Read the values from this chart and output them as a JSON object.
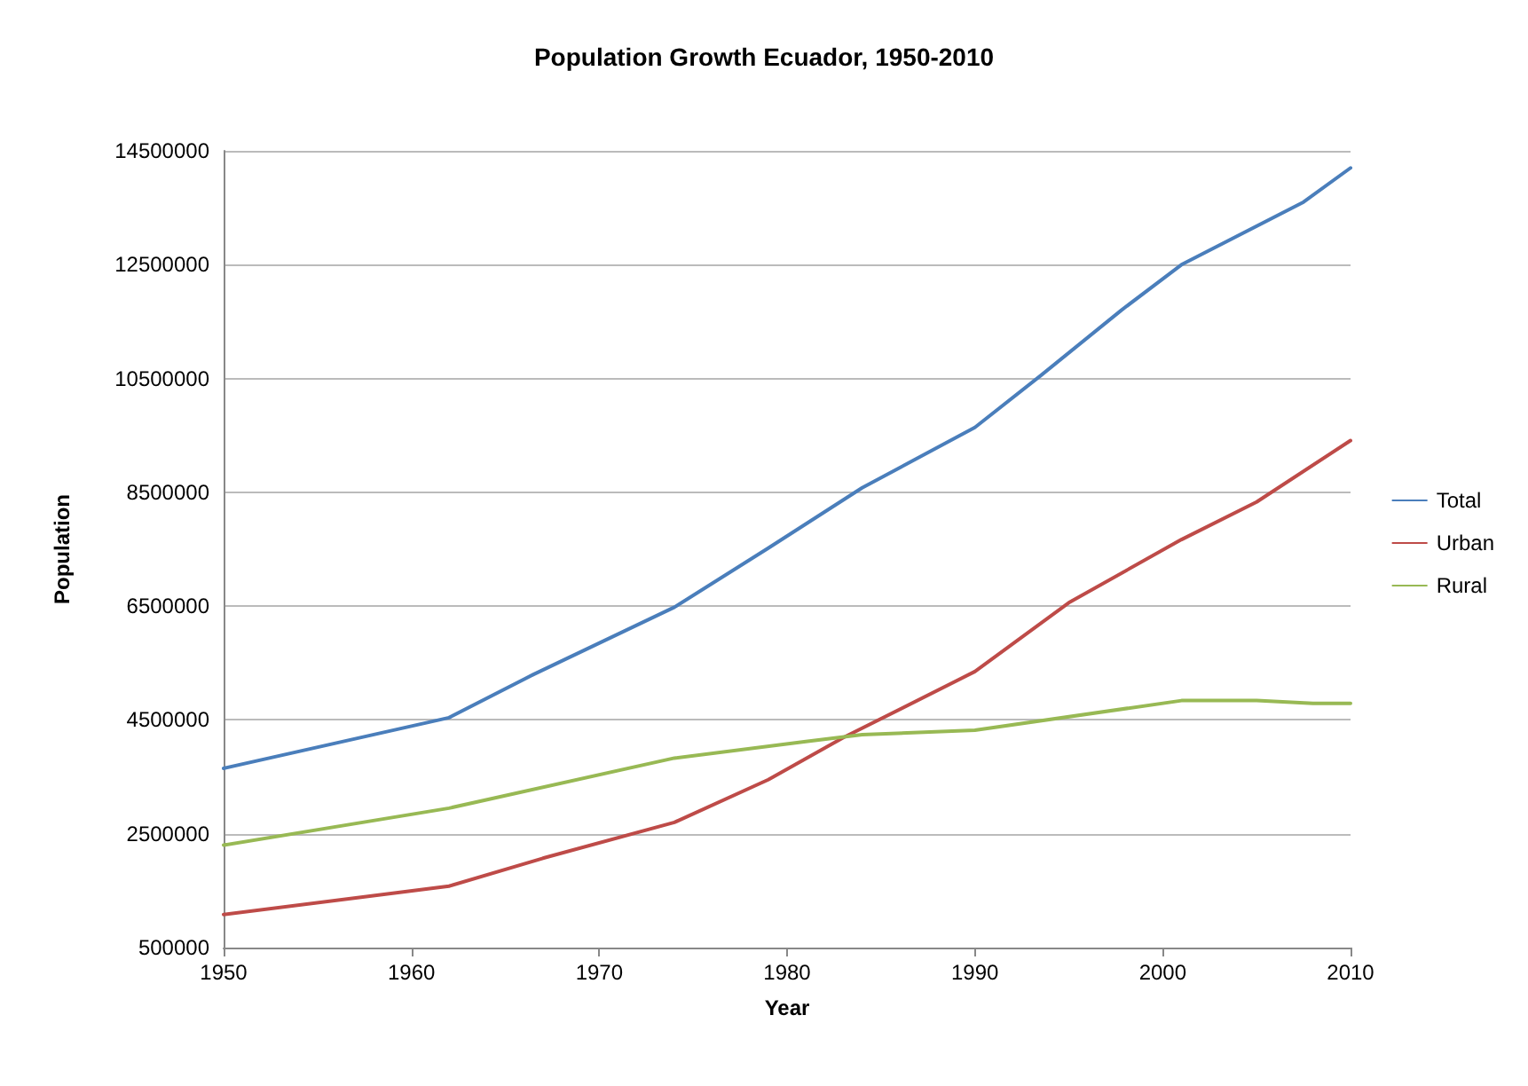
{
  "chart_data": {
    "type": "line",
    "title": "Population Growth Ecuador, 1950-2010",
    "xlabel": "Year",
    "ylabel": "Population",
    "xlim": [
      1950,
      2010
    ],
    "xticks": [
      1950,
      1960,
      1970,
      1980,
      1990,
      2000,
      2010
    ],
    "ylim": [
      500000,
      14500000
    ],
    "yticks": [
      500000,
      2500000,
      4500000,
      6500000,
      8500000,
      10500000,
      12500000,
      14500000
    ],
    "grid": "y",
    "legend": "right",
    "marker": "none",
    "line_style": "solid",
    "series": [
      {
        "name": "Total",
        "color": "#4a7ebb",
        "x": [
          1950,
          1962,
          1966.5,
          1974,
          1979,
          1984,
          1990,
          1993.5,
          1997.8,
          2001,
          2007.5,
          2010
        ],
        "values": [
          3650000,
          4540000,
          5300000,
          6480000,
          7520000,
          8580000,
          9640000,
          10550000,
          11700000,
          12500000,
          13600000,
          14200000
        ]
      },
      {
        "name": "Urban",
        "color": "#be4b48",
        "x": [
          1950,
          1962,
          1967,
          1974,
          1979,
          1983,
          1990,
          1995,
          2001,
          2005,
          2010
        ],
        "values": [
          1080000,
          1580000,
          2070000,
          2700000,
          3450000,
          4190000,
          5350000,
          6560000,
          7670000,
          8330000,
          9410000
        ]
      },
      {
        "name": "Rural",
        "color": "#98b954",
        "x": [
          1950,
          1962,
          1974,
          1981,
          1984,
          1990,
          2001,
          2005,
          2008,
          2010
        ],
        "values": [
          2300000,
          2950000,
          3830000,
          4120000,
          4240000,
          4320000,
          4840000,
          4840000,
          4790000,
          4790000
        ]
      }
    ]
  }
}
